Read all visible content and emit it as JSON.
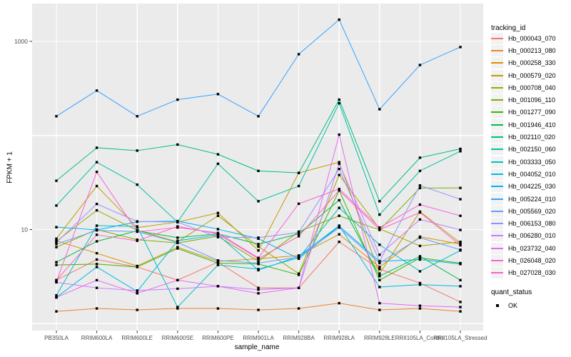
{
  "chart_data": {
    "type": "line",
    "title": "",
    "xlabel": "sample_name",
    "ylabel": "FPKM + 1",
    "legend_title": "tracking_id",
    "legend2_title": "quant_status",
    "legend2_items": [
      {
        "label": "OK",
        "marker": "black-square"
      }
    ],
    "y_scale": "log10",
    "y_ticks": [
      {
        "value": 1000,
        "label": "1000"
      },
      {
        "value": 10,
        "label": "10"
      }
    ],
    "y_gridlines": [
      1,
      10,
      100,
      1000
    ],
    "ylim": [
      1.2,
      1800
    ],
    "grid": true,
    "legend_position": "right",
    "point_marker": {
      "shape": "square",
      "color": "#000000",
      "size": 3.4
    },
    "panel_bg": "#EBEBEB",
    "grid_color": "#FFFFFF",
    "tick_text_color": "#4D4D4D",
    "categories": [
      "PB350LA",
      "RRIM600LA",
      "RRIM600LE",
      "RRIM600SE",
      "RRIM600PE",
      "RRIM901LA",
      "RRIM928BA",
      "RRIM928LA",
      "RRIM928LE",
      "RRII105LA_Control",
      "RRII105LA_Stressed"
    ],
    "series": [
      {
        "name": "Hb_000043_070",
        "color": "#F8766D",
        "values": [
          2.9,
          4.8,
          4.0,
          2.9,
          4.5,
          2.4,
          2.4,
          7.4,
          3.8,
          2.7,
          1.7
        ]
      },
      {
        "name": "Hb_000213_080",
        "color": "#EA8331",
        "values": [
          1.35,
          1.45,
          1.4,
          1.45,
          1.45,
          1.4,
          1.45,
          1.65,
          1.4,
          1.45,
          1.35
        ]
      },
      {
        "name": "Hb_000258_330",
        "color": "#D89000",
        "values": [
          7.6,
          5.6,
          4.1,
          6.5,
          4.6,
          4.9,
          5.3,
          8.9,
          4.0,
          8.4,
          7.0
        ]
      },
      {
        "name": "Hb_000579_020",
        "color": "#C09B00",
        "values": [
          8.0,
          29,
          10.5,
          12,
          15,
          6.0,
          40,
          52,
          3.4,
          15.5,
          7.2
        ]
      },
      {
        "name": "Hb_000708_040",
        "color": "#A3A500",
        "values": [
          7.5,
          16,
          9.8,
          7.4,
          14,
          6.6,
          3.4,
          38,
          10.2,
          6.7,
          7.4
        ]
      },
      {
        "name": "Hb_001096_110",
        "color": "#7CAE00",
        "values": [
          6.5,
          10,
          7.8,
          7.2,
          8.5,
          4.6,
          9.5,
          14,
          9.9,
          27.6,
          27.7
        ]
      },
      {
        "name": "Hb_001277_090",
        "color": "#39B600",
        "values": [
          4.2,
          4.3,
          4.0,
          6.3,
          4.4,
          4.3,
          3.3,
          26,
          2.9,
          5.0,
          4.4
        ]
      },
      {
        "name": "Hb_001946_410",
        "color": "#00BB4E",
        "values": [
          4.5,
          7.5,
          9.7,
          8.2,
          9.0,
          7.0,
          9.0,
          20.5,
          3.2,
          5.2,
          2.9
        ]
      },
      {
        "name": "Hb_002110_020",
        "color": "#00BF7D",
        "values": [
          33,
          74,
          69,
          80,
          63,
          42,
          40,
          240,
          20,
          58,
          72
        ]
      },
      {
        "name": "Hb_002150_060",
        "color": "#00C1A3",
        "values": [
          18,
          52,
          30,
          12,
          50,
          20,
          29,
          220,
          14.4,
          42,
          68
        ]
      },
      {
        "name": "Hb_003333_050",
        "color": "#00BFC4",
        "values": [
          2.0,
          11,
          10.8,
          1.5,
          4.2,
          3.8,
          5.0,
          17,
          6.9,
          3.6,
          6.0
        ]
      },
      {
        "name": "Hb_004052_010",
        "color": "#00BAE0",
        "values": [
          1.9,
          4.0,
          2.2,
          7.6,
          8.8,
          3.7,
          5.2,
          11,
          2.45,
          2.6,
          2.5
        ]
      },
      {
        "name": "Hb_004225_030",
        "color": "#00B0F6",
        "values": [
          10.6,
          9.9,
          12.1,
          12.3,
          10.1,
          8.0,
          4.9,
          10.9,
          4.6,
          4.8,
          4.3
        ]
      },
      {
        "name": "Hb_005224_010",
        "color": "#35A2FF",
        "values": [
          160,
          300,
          160,
          240,
          275,
          160,
          730,
          1700,
          190,
          560,
          870
        ]
      },
      {
        "name": "Hb_005569_020",
        "color": "#619CFF",
        "values": [
          7.0,
          9.8,
          9.5,
          7.3,
          4.7,
          4.4,
          5.1,
          10.5,
          4.4,
          8.2,
          6.1
        ]
      },
      {
        "name": "Hb_006153_080",
        "color": "#9590FF",
        "values": [
          7.3,
          18.7,
          12.2,
          12,
          8.3,
          8.2,
          9.3,
          44,
          4.6,
          29.4,
          21
        ]
      },
      {
        "name": "Hb_006280_010",
        "color": "#C77CFF",
        "values": [
          2.75,
          2.4,
          2.25,
          2.35,
          2.5,
          2.3,
          2.4,
          50,
          5.4,
          12.8,
          9.9
        ]
      },
      {
        "name": "Hb_023732_040",
        "color": "#E76BF3",
        "values": [
          1.9,
          2.9,
          2.1,
          2.9,
          2.5,
          2.1,
          2.4,
          102,
          1.65,
          1.55,
          1.5
        ]
      },
      {
        "name": "Hb_026048_020",
        "color": "#FA62DB",
        "values": [
          2.8,
          41,
          9.5,
          10.5,
          9.2,
          5.0,
          18.8,
          27,
          10.5,
          18.4,
          14
        ]
      },
      {
        "name": "Hb_027028_030",
        "color": "#FF62BC",
        "values": [
          2.9,
          8.8,
          7.6,
          10.8,
          9.0,
          4.9,
          8.5,
          26,
          10.0,
          15.2,
          6.8
        ]
      }
    ]
  }
}
